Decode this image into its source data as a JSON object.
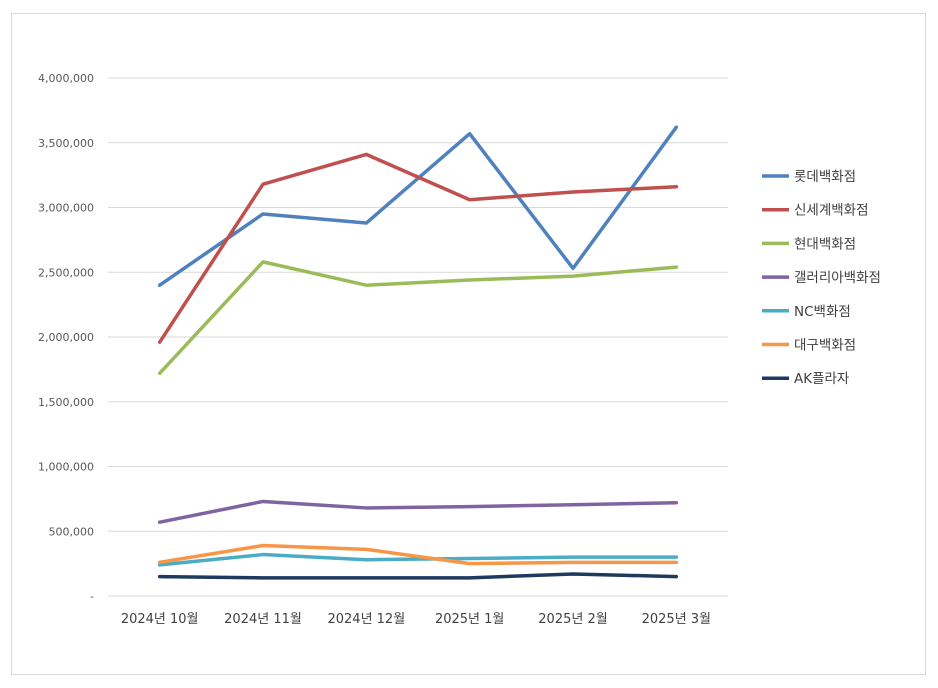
{
  "chart_data": {
    "type": "line",
    "title": "",
    "xlabel": "",
    "ylabel": "",
    "ylim": [
      0,
      4000000
    ],
    "yticks": [
      0,
      500000,
      1000000,
      1500000,
      2000000,
      2500000,
      3000000,
      3500000,
      4000000
    ],
    "ytick_labels": [
      "-",
      "500,000",
      "1,000,000",
      "1,500,000",
      "2,000,000",
      "2,500,000",
      "3,000,000",
      "3,500,000",
      "4,000,000"
    ],
    "grid": true,
    "legend_position": "right",
    "categories": [
      "2024년 10월",
      "2024년 11월",
      "2024년 12월",
      "2025년 1월",
      "2025년 2월",
      "2025년 3월"
    ],
    "series": [
      {
        "name": "롯데백화점",
        "color": "#4f81bd",
        "values": [
          2400000,
          2950000,
          2880000,
          3570000,
          2530000,
          3620000
        ]
      },
      {
        "name": "신세계백화점",
        "color": "#c0504d",
        "values": [
          1960000,
          3180000,
          3410000,
          3060000,
          3120000,
          3160000
        ]
      },
      {
        "name": "현대백화점",
        "color": "#9bbb59",
        "values": [
          1720000,
          2580000,
          2400000,
          2440000,
          2470000,
          2540000
        ]
      },
      {
        "name": "갤러리아백화점",
        "color": "#8064a2",
        "values": [
          570000,
          730000,
          680000,
          690000,
          705000,
          720000
        ]
      },
      {
        "name": "NC백화점",
        "color": "#4bacc6",
        "values": [
          240000,
          320000,
          280000,
          290000,
          300000,
          300000
        ]
      },
      {
        "name": "대구백화점",
        "color": "#f79646",
        "values": [
          260000,
          390000,
          360000,
          250000,
          260000,
          260000
        ]
      },
      {
        "name": "AK플라자",
        "color": "#1f3a5f",
        "values": [
          150000,
          140000,
          140000,
          140000,
          170000,
          150000
        ]
      }
    ]
  }
}
